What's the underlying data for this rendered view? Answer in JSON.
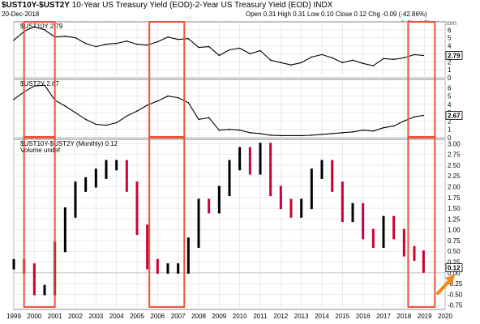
{
  "header": {
    "symbol": "$UST10Y-$UST2Y",
    "description": "10-Year US Treasury Yield (EOD)-2-Year US Treasury Yield (EOD)",
    "exchange": "INDX",
    "date": "20-Dec-2018",
    "quote": "Open 0.31  High 0.31  Low 0.10  Close 0.12  Chg -0.09 (-42.86%)",
    "brand": "© StockCharts.com"
  },
  "chart_data": [
    {
      "type": "line",
      "legend": "$UST10Y 2.79",
      "last_label": "2.79",
      "x": [
        1999.0,
        1999.5,
        2000.0,
        2000.5,
        2001.0,
        2001.5,
        2002.0,
        2002.5,
        2003.0,
        2003.5,
        2004.0,
        2004.5,
        2005.0,
        2005.5,
        2006.0,
        2006.5,
        2007.0,
        2007.5,
        2008.0,
        2008.5,
        2009.0,
        2009.5,
        2010.0,
        2010.5,
        2011.0,
        2011.5,
        2012.0,
        2012.5,
        2013.0,
        2013.5,
        2014.0,
        2014.5,
        2015.0,
        2015.5,
        2016.0,
        2016.5,
        2017.0,
        2017.5,
        2018.0,
        2018.5,
        2018.95
      ],
      "y": [
        4.7,
        5.8,
        6.4,
        6.0,
        5.1,
        5.2,
        5.0,
        4.3,
        3.9,
        4.2,
        4.3,
        4.6,
        4.2,
        4.1,
        4.5,
        5.1,
        4.8,
        4.9,
        3.8,
        3.9,
        2.8,
        3.5,
        3.7,
        3.0,
        3.4,
        2.2,
        1.9,
        1.6,
        1.9,
        2.6,
        2.9,
        2.5,
        1.9,
        2.2,
        1.8,
        1.5,
        2.4,
        2.3,
        2.5,
        2.9,
        2.79
      ],
      "ylim": [
        0,
        7
      ],
      "y_ticks": [
        "0",
        "1",
        "2",
        "3",
        "4",
        "5",
        "6"
      ]
    },
    {
      "type": "line",
      "legend": "$UST2Y 2.67",
      "last_label": "2.67",
      "x": [
        1999.0,
        1999.5,
        2000.0,
        2000.5,
        2001.0,
        2001.5,
        2002.0,
        2002.5,
        2003.0,
        2003.5,
        2004.0,
        2004.5,
        2005.0,
        2005.5,
        2006.0,
        2006.5,
        2007.0,
        2007.5,
        2008.0,
        2008.5,
        2009.0,
        2009.5,
        2010.0,
        2010.5,
        2011.0,
        2011.5,
        2012.0,
        2012.5,
        2013.0,
        2013.5,
        2014.0,
        2014.5,
        2015.0,
        2015.5,
        2016.0,
        2016.5,
        2017.0,
        2017.5,
        2018.0,
        2018.5,
        2018.95
      ],
      "y": [
        4.6,
        5.5,
        6.2,
        6.3,
        4.5,
        3.8,
        3.0,
        2.2,
        1.6,
        1.5,
        1.8,
        2.6,
        3.2,
        3.9,
        4.4,
        5.0,
        4.8,
        4.2,
        2.2,
        2.4,
        0.9,
        1.0,
        0.9,
        0.6,
        0.5,
        0.3,
        0.25,
        0.25,
        0.25,
        0.3,
        0.4,
        0.5,
        0.6,
        0.7,
        0.9,
        0.8,
        1.2,
        1.4,
        2.0,
        2.5,
        2.67
      ],
      "ylim": [
        0,
        7
      ],
      "y_ticks": [
        "0",
        "1",
        "2",
        "3",
        "4",
        "5",
        "6"
      ]
    },
    {
      "type": "bar",
      "legend": "$UST10Y-$UST2Y (Monthly) 0.12",
      "legend2": "Volume undef",
      "last_label": "0.12",
      "x_ticks": [
        "1999",
        "2000",
        "2001",
        "2002",
        "2003",
        "2004",
        "2005",
        "2006",
        "2007",
        "2008",
        "2009",
        "2010",
        "2011",
        "2012",
        "2013",
        "2014",
        "2015",
        "2016",
        "2017",
        "2018",
        "2019",
        "2020"
      ],
      "y_ticks": [
        "-0.75",
        "-0.50",
        "-0.25",
        "0.00",
        "0.25",
        "0.50",
        "0.75",
        "1.00",
        "1.25",
        "1.50",
        "1.75",
        "2.00",
        "2.25",
        "2.50",
        "2.75",
        "3.00"
      ],
      "ylim": [
        -0.85,
        3.1
      ],
      "x": [
        1999.0,
        1999.5,
        2000.0,
        2000.5,
        2001.0,
        2001.5,
        2002.0,
        2002.5,
        2003.0,
        2003.5,
        2004.0,
        2004.5,
        2005.0,
        2005.5,
        2006.0,
        2006.5,
        2007.0,
        2007.5,
        2008.0,
        2008.5,
        2009.0,
        2009.5,
        2010.0,
        2010.5,
        2011.0,
        2011.5,
        2012.0,
        2012.5,
        2013.0,
        2013.5,
        2014.0,
        2014.5,
        2015.0,
        2015.5,
        2016.0,
        2016.5,
        2017.0,
        2017.5,
        2018.0,
        2018.5,
        2018.95
      ],
      "values": [
        0.2,
        0.1,
        -0.4,
        -0.4,
        0.6,
        1.4,
        2.0,
        2.1,
        2.3,
        2.5,
        2.5,
        2.0,
        1.0,
        0.2,
        0.1,
        0.1,
        0.1,
        0.7,
        1.6,
        1.5,
        1.9,
        2.5,
        2.8,
        2.4,
        2.9,
        1.9,
        1.6,
        1.4,
        1.6,
        2.3,
        2.5,
        2.0,
        1.3,
        1.5,
        0.9,
        0.7,
        1.2,
        0.9,
        0.5,
        0.4,
        0.12
      ],
      "highlights": [
        {
          "from": 1999.5,
          "to": 2001.0
        },
        {
          "from": 2005.6,
          "to": 2007.3
        },
        {
          "from": 2018.2,
          "to": 2019.5
        }
      ]
    }
  ]
}
